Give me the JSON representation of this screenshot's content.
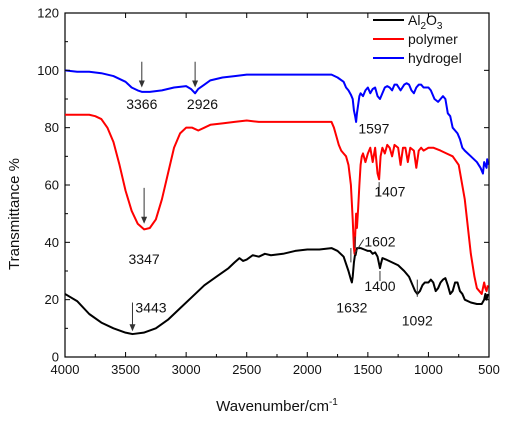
{
  "chart_data": {
    "type": "line",
    "xlabel": "Wavenumber/cm",
    "xlabel_sup": "-1",
    "ylabel": "Transmittance %",
    "xlim": [
      4000,
      500
    ],
    "x_reversed": true,
    "ylim": [
      0,
      120
    ],
    "x_ticks": [
      4000,
      3500,
      3000,
      2500,
      2000,
      1500,
      1000,
      500
    ],
    "y_ticks": [
      0,
      20,
      40,
      60,
      80,
      100,
      120
    ],
    "legend_position": "top-right",
    "grid": false,
    "series": [
      {
        "name": "Al2O3",
        "name_parts": [
          "Al",
          "2",
          "O",
          "3"
        ],
        "color": "#000000",
        "points": [
          [
            4000,
            22
          ],
          [
            3900,
            19.5
          ],
          [
            3800,
            15
          ],
          [
            3700,
            12
          ],
          [
            3600,
            10
          ],
          [
            3500,
            8.5
          ],
          [
            3443,
            8
          ],
          [
            3350,
            8.5
          ],
          [
            3250,
            10
          ],
          [
            3150,
            13
          ],
          [
            3050,
            17
          ],
          [
            2950,
            21
          ],
          [
            2850,
            25
          ],
          [
            2750,
            28
          ],
          [
            2650,
            31
          ],
          [
            2600,
            33
          ],
          [
            2560,
            34.5
          ],
          [
            2530,
            33.5
          ],
          [
            2500,
            34
          ],
          [
            2450,
            35.5
          ],
          [
            2400,
            35
          ],
          [
            2350,
            36
          ],
          [
            2300,
            35.5
          ],
          [
            2200,
            36
          ],
          [
            2100,
            37
          ],
          [
            2000,
            37.5
          ],
          [
            1900,
            37.5
          ],
          [
            1800,
            38
          ],
          [
            1750,
            37
          ],
          [
            1700,
            35
          ],
          [
            1660,
            30
          ],
          [
            1640,
            27
          ],
          [
            1632,
            26
          ],
          [
            1625,
            28
          ],
          [
            1615,
            33
          ],
          [
            1605,
            36
          ],
          [
            1602,
            35.5
          ],
          [
            1590,
            38
          ],
          [
            1560,
            38
          ],
          [
            1530,
            37.5
          ],
          [
            1500,
            37
          ],
          [
            1480,
            37
          ],
          [
            1460,
            36
          ],
          [
            1440,
            36.5
          ],
          [
            1420,
            35
          ],
          [
            1405,
            32
          ],
          [
            1400,
            31
          ],
          [
            1395,
            32
          ],
          [
            1380,
            34.5
          ],
          [
            1350,
            34
          ],
          [
            1300,
            33
          ],
          [
            1250,
            32
          ],
          [
            1200,
            30
          ],
          [
            1160,
            28
          ],
          [
            1130,
            25
          ],
          [
            1110,
            23
          ],
          [
            1092,
            22
          ],
          [
            1070,
            23
          ],
          [
            1050,
            25
          ],
          [
            1030,
            26
          ],
          [
            1000,
            26
          ],
          [
            980,
            27
          ],
          [
            960,
            26
          ],
          [
            940,
            23
          ],
          [
            920,
            24
          ],
          [
            900,
            26
          ],
          [
            880,
            27
          ],
          [
            860,
            27.5
          ],
          [
            840,
            25
          ],
          [
            820,
            22
          ],
          [
            800,
            23
          ],
          [
            780,
            26
          ],
          [
            760,
            26
          ],
          [
            740,
            23
          ],
          [
            720,
            22
          ],
          [
            700,
            20
          ],
          [
            650,
            19
          ],
          [
            600,
            18.5
          ],
          [
            560,
            18.5
          ],
          [
            540,
            20
          ],
          [
            530,
            22
          ],
          [
            520,
            20
          ],
          [
            510,
            22
          ]
        ]
      },
      {
        "name": "polymer",
        "color": "#ff0000",
        "points": [
          [
            4000,
            84.5
          ],
          [
            3900,
            84.5
          ],
          [
            3800,
            84.5
          ],
          [
            3750,
            84
          ],
          [
            3700,
            83
          ],
          [
            3650,
            80
          ],
          [
            3600,
            75
          ],
          [
            3550,
            67
          ],
          [
            3500,
            58
          ],
          [
            3450,
            51
          ],
          [
            3400,
            46.5
          ],
          [
            3347,
            44.5
          ],
          [
            3300,
            45
          ],
          [
            3250,
            48
          ],
          [
            3200,
            55
          ],
          [
            3150,
            64
          ],
          [
            3100,
            73
          ],
          [
            3050,
            78
          ],
          [
            3000,
            80
          ],
          [
            2950,
            80
          ],
          [
            2900,
            79
          ],
          [
            2850,
            80
          ],
          [
            2800,
            81
          ],
          [
            2700,
            81.5
          ],
          [
            2600,
            82
          ],
          [
            2500,
            82.5
          ],
          [
            2400,
            82
          ],
          [
            2300,
            82
          ],
          [
            2200,
            82
          ],
          [
            2100,
            82
          ],
          [
            2000,
            82
          ],
          [
            1900,
            82
          ],
          [
            1800,
            82
          ],
          [
            1780,
            80
          ],
          [
            1760,
            77
          ],
          [
            1740,
            74
          ],
          [
            1720,
            72
          ],
          [
            1700,
            71
          ],
          [
            1680,
            70
          ],
          [
            1660,
            67
          ],
          [
            1640,
            60
          ],
          [
            1625,
            48
          ],
          [
            1615,
            38
          ],
          [
            1610,
            36
          ],
          [
            1605,
            42
          ],
          [
            1597,
            50
          ],
          [
            1590,
            45
          ],
          [
            1580,
            52
          ],
          [
            1570,
            60
          ],
          [
            1560,
            67
          ],
          [
            1550,
            70
          ],
          [
            1540,
            71
          ],
          [
            1520,
            68
          ],
          [
            1500,
            71
          ],
          [
            1480,
            73
          ],
          [
            1460,
            68
          ],
          [
            1440,
            73
          ],
          [
            1420,
            64
          ],
          [
            1407,
            62
          ],
          [
            1395,
            70
          ],
          [
            1380,
            73
          ],
          [
            1360,
            71
          ],
          [
            1340,
            74
          ],
          [
            1320,
            73
          ],
          [
            1300,
            70
          ],
          [
            1280,
            74
          ],
          [
            1250,
            73
          ],
          [
            1230,
            67
          ],
          [
            1210,
            73
          ],
          [
            1190,
            73
          ],
          [
            1170,
            68
          ],
          [
            1150,
            73
          ],
          [
            1120,
            72
          ],
          [
            1100,
            66
          ],
          [
            1080,
            72
          ],
          [
            1060,
            73
          ],
          [
            1040,
            72
          ],
          [
            1000,
            73
          ],
          [
            960,
            73
          ],
          [
            900,
            72
          ],
          [
            850,
            71
          ],
          [
            800,
            70
          ],
          [
            750,
            67
          ],
          [
            700,
            55
          ],
          [
            650,
            36
          ],
          [
            620,
            28
          ],
          [
            600,
            24
          ],
          [
            580,
            23
          ],
          [
            560,
            22
          ],
          [
            550,
            24
          ],
          [
            540,
            26
          ],
          [
            530,
            24
          ],
          [
            520,
            23
          ],
          [
            510,
            25
          ]
        ]
      },
      {
        "name": "hydrogel",
        "color": "#0000ff",
        "points": [
          [
            4000,
            100
          ],
          [
            3900,
            99.5
          ],
          [
            3800,
            99.5
          ],
          [
            3700,
            99
          ],
          [
            3600,
            98
          ],
          [
            3500,
            96
          ],
          [
            3450,
            94
          ],
          [
            3400,
            93
          ],
          [
            3366,
            92.5
          ],
          [
            3300,
            92.5
          ],
          [
            3200,
            93
          ],
          [
            3100,
            94
          ],
          [
            3000,
            94.5
          ],
          [
            2960,
            93.5
          ],
          [
            2926,
            92
          ],
          [
            2900,
            93.5
          ],
          [
            2850,
            95
          ],
          [
            2800,
            96.5
          ],
          [
            2700,
            97.5
          ],
          [
            2600,
            98
          ],
          [
            2500,
            98.5
          ],
          [
            2400,
            98.5
          ],
          [
            2300,
            98.5
          ],
          [
            2200,
            98.5
          ],
          [
            2100,
            98.5
          ],
          [
            2000,
            98.5
          ],
          [
            1900,
            98.5
          ],
          [
            1800,
            98.5
          ],
          [
            1750,
            97.5
          ],
          [
            1700,
            96
          ],
          [
            1680,
            94
          ],
          [
            1660,
            93
          ],
          [
            1640,
            91.5
          ],
          [
            1625,
            90
          ],
          [
            1615,
            86
          ],
          [
            1605,
            84
          ],
          [
            1597,
            82
          ],
          [
            1590,
            85
          ],
          [
            1580,
            88
          ],
          [
            1570,
            91
          ],
          [
            1560,
            92
          ],
          [
            1540,
            91
          ],
          [
            1520,
            93
          ],
          [
            1500,
            94
          ],
          [
            1480,
            92
          ],
          [
            1460,
            93.5
          ],
          [
            1440,
            94
          ],
          [
            1420,
            91
          ],
          [
            1400,
            90
          ],
          [
            1380,
            92
          ],
          [
            1360,
            94
          ],
          [
            1340,
            94.5
          ],
          [
            1320,
            94
          ],
          [
            1300,
            93
          ],
          [
            1280,
            95
          ],
          [
            1260,
            95
          ],
          [
            1230,
            93
          ],
          [
            1200,
            95
          ],
          [
            1180,
            95.5
          ],
          [
            1160,
            95
          ],
          [
            1140,
            93
          ],
          [
            1120,
            92
          ],
          [
            1100,
            94
          ],
          [
            1080,
            95
          ],
          [
            1060,
            95
          ],
          [
            1040,
            94
          ],
          [
            1000,
            94
          ],
          [
            980,
            93
          ],
          [
            950,
            90
          ],
          [
            920,
            89
          ],
          [
            900,
            90
          ],
          [
            880,
            91
          ],
          [
            860,
            90
          ],
          [
            840,
            85
          ],
          [
            820,
            84
          ],
          [
            800,
            80
          ],
          [
            780,
            79
          ],
          [
            760,
            78
          ],
          [
            740,
            76
          ],
          [
            720,
            73
          ],
          [
            700,
            72
          ],
          [
            650,
            70
          ],
          [
            600,
            68
          ],
          [
            570,
            66
          ],
          [
            550,
            64
          ],
          [
            540,
            68
          ],
          [
            530,
            67
          ],
          [
            520,
            66
          ],
          [
            515,
            69
          ],
          [
            510,
            67
          ]
        ]
      }
    ],
    "annotations": [
      {
        "text": "3366",
        "arrow_x": 3366,
        "arrow_y_top": 103,
        "arrow_y_bottom": 94,
        "label_x": 3366,
        "label_y": 86.5
      },
      {
        "text": "2926",
        "arrow_x": 2926,
        "arrow_y_top": 103,
        "arrow_y_bottom": 94,
        "label_x": 2865,
        "label_y": 86.5
      },
      {
        "text": "1597",
        "label_x": 1450,
        "label_y": 78
      },
      {
        "text": "3347",
        "arrow_x": 3347,
        "arrow_y_top": 59,
        "arrow_y_bottom": 46.5,
        "label_x": 3347,
        "label_y": 32.5
      },
      {
        "text": "1407",
        "tick_x": 1407,
        "tick_y_top": 61,
        "tick_y_bottom": 56,
        "label_x": 1318,
        "label_y": 56
      },
      {
        "text": "1602",
        "tick_x": 1605,
        "tick_y_top": 38,
        "tick_y_bottom": 42,
        "label_x": 1400,
        "label_y": 38.5
      },
      {
        "text": "1632",
        "tick_x": 1640,
        "tick_y_top": 38,
        "tick_y_bottom": 33,
        "label_x": 1632,
        "label_y": 15.5
      },
      {
        "text": "1400",
        "label_x": 1400,
        "label_y": 23
      },
      {
        "text": "3443",
        "arrow_x": 3443,
        "arrow_y_top": 19,
        "arrow_y_bottom": 9,
        "label_x": 3290,
        "label_y": 15.5
      },
      {
        "text": "1092",
        "tick_x": 1092,
        "tick_y_top": 27,
        "tick_y_bottom": 21,
        "label_x": 1092,
        "label_y": 11
      }
    ]
  }
}
